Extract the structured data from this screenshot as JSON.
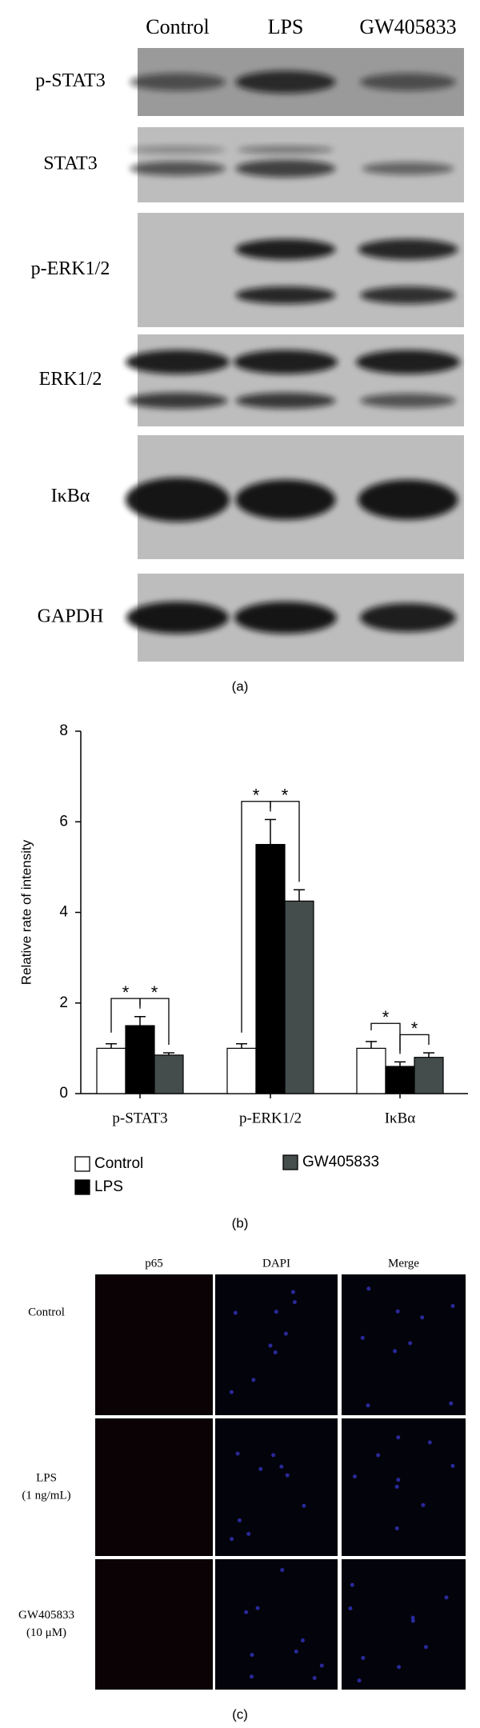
{
  "panel_a": {
    "columns": [
      "Control",
      "LPS",
      "GW405833"
    ],
    "rows": [
      "p-STAT3",
      "STAT3",
      "p-ERK1/2",
      "ERK1/2",
      "IκBα",
      "GAPDH"
    ],
    "caption": "(a)"
  },
  "chart_data": {
    "type": "bar",
    "caption": "(b)",
    "y_label": "Relative rate of intensity",
    "categories": [
      "p-STAT3",
      "p-ERK1/2",
      "IκBα"
    ],
    "series": [
      {
        "name": "Control",
        "color": "#ffffff",
        "values": [
          1.0,
          1.0,
          1.0
        ],
        "errors": [
          0.1,
          0.1,
          0.15
        ]
      },
      {
        "name": "LPS",
        "color": "#000000",
        "values": [
          1.5,
          5.5,
          0.6
        ],
        "errors": [
          0.2,
          0.55,
          0.1
        ]
      },
      {
        "name": "GW405833",
        "color": "#444c4c",
        "values": [
          0.85,
          4.25,
          0.8
        ],
        "errors": [
          0.05,
          0.25,
          0.1
        ]
      }
    ],
    "ylim": [
      0,
      8
    ],
    "yticks": [
      0,
      2,
      4,
      6,
      8
    ],
    "significance": [
      "*",
      "*",
      "*",
      "*",
      "*",
      "*"
    ]
  },
  "panel_c": {
    "columns": [
      "p65",
      "DAPI",
      "Merge"
    ],
    "rows": [
      [
        "Control"
      ],
      [
        "LPS",
        "(1 ng/mL)"
      ],
      [
        "GW405833",
        "(10 μM)"
      ]
    ],
    "caption": "(c)"
  }
}
